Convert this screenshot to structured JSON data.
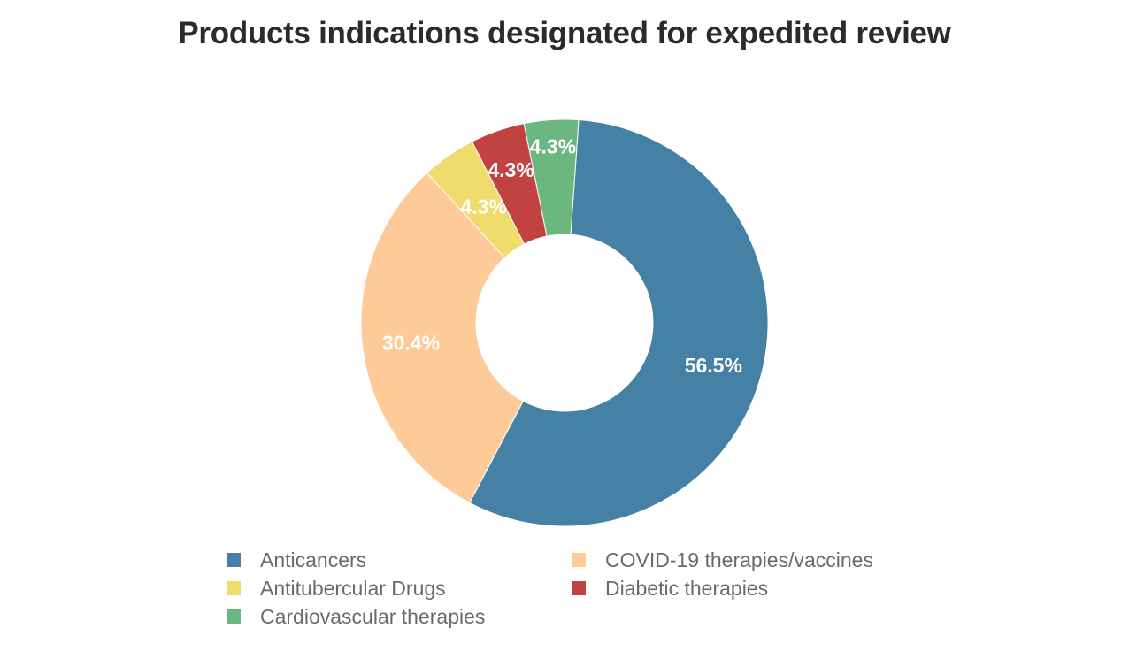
{
  "chart_data": {
    "type": "pie",
    "donut": true,
    "title": "Products indications designated for expedited review",
    "slices": [
      {
        "label": "Anticancers",
        "value": 56.5,
        "display": "56.5%",
        "color": "#4581a5"
      },
      {
        "label": "COVID-19 therapies/vaccines",
        "value": 30.4,
        "display": "30.4%",
        "color": "#fdca98"
      },
      {
        "label": "Antitubercular Drugs",
        "value": 4.3,
        "display": "4.3%",
        "color": "#f0dc6c"
      },
      {
        "label": "Diabetic therapies",
        "value": 4.3,
        "display": "4.3%",
        "color": "#c24141"
      },
      {
        "label": "Cardiovascular therapies",
        "value": 4.3,
        "display": "4.3%",
        "color": "#6bb77f"
      }
    ],
    "legend": {
      "placement": "bottom",
      "entries": [
        "Anticancers",
        "COVID-19 therapies/vaccines",
        "Antitubercular Drugs",
        "Diabetic therapies",
        "Cardiovascular therapies"
      ]
    }
  }
}
